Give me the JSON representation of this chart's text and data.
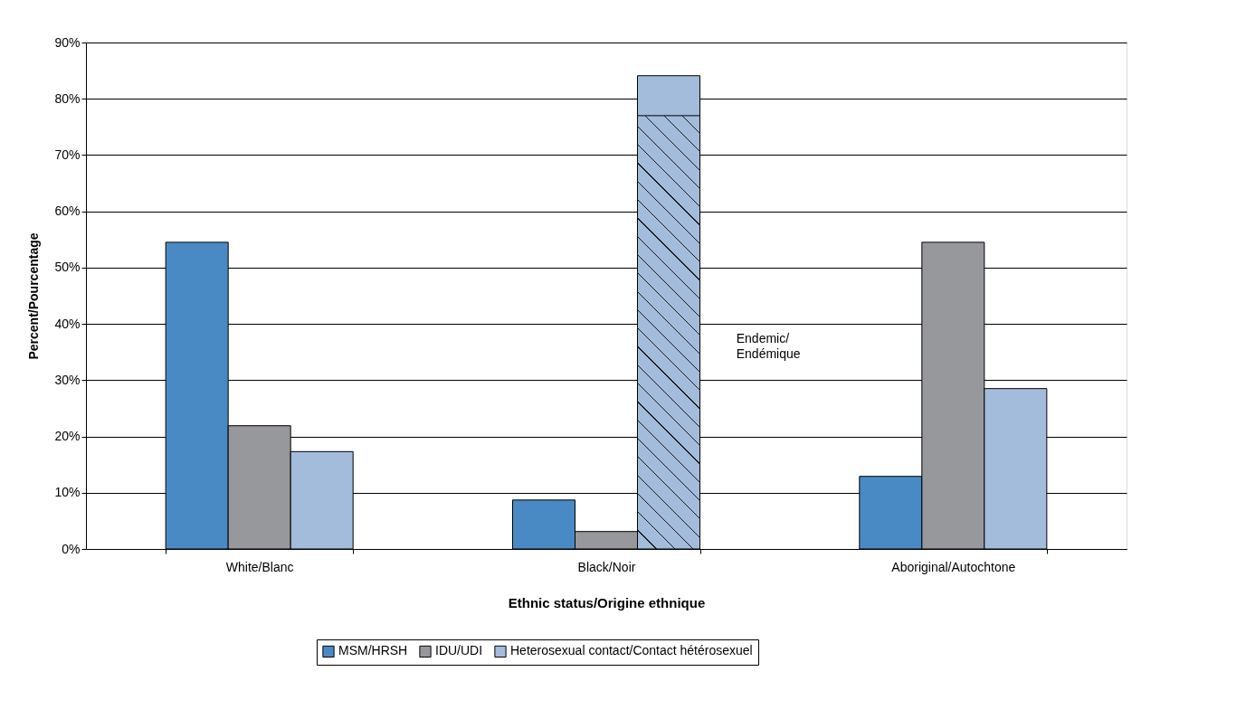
{
  "chart_data": {
    "type": "bar",
    "xlabel": "Ethnic status/Origine ethnique",
    "ylabel": "Percent/Pourcentage",
    "categories": [
      "White/Blanc",
      "Black/Noir",
      "Aboriginal/Autochtone"
    ],
    "series": [
      {
        "name": "MSM/HRSH",
        "color": "#4a8ac4",
        "values": [
          54.5,
          8.7,
          12.9
        ]
      },
      {
        "name": "IDU/UDI",
        "color": "#97989c",
        "values": [
          21.9,
          3.1,
          54.5
        ]
      },
      {
        "name": "Heterosexual contact/Contact hétérosexuel",
        "color": "#a3bcdb",
        "values": [
          17.3,
          84.1,
          28.5
        ]
      },
      {
        "color": "#a3bcdb",
        "values": [
          null,
          77.0,
          null
        ]
      }
    ],
    "annotations": [
      "Endemic/Endémique"
    ],
    "ylim": [
      0,
      90
    ],
    "yticks": [
      {
        "value": 0,
        "label": "0%"
      },
      {
        "value": 10,
        "label": "10%"
      },
      {
        "value": 20,
        "label": "20%"
      },
      {
        "value": 30,
        "label": "30%"
      },
      {
        "value": 40,
        "label": "40%"
      },
      {
        "value": 50,
        "label": "50%"
      },
      {
        "value": 60,
        "label": "60%"
      },
      {
        "value": 70,
        "label": "70%"
      },
      {
        "value": 80,
        "label": "80%"
      },
      {
        "value": 90,
        "label": "90%"
      }
    ],
    "grid": "y",
    "legend": "bottom"
  }
}
